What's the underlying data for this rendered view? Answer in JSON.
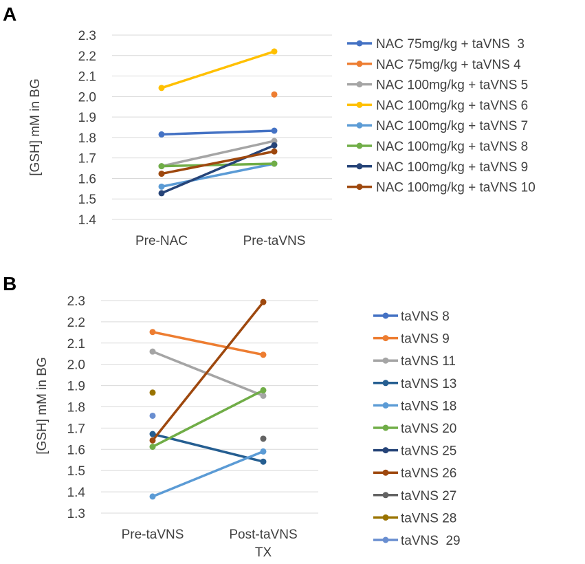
{
  "chart_data": [
    {
      "panel": "A",
      "type": "line",
      "ylabel": "[GSH] mM in BG",
      "xlabel": "",
      "categories": [
        "Pre-NAC",
        "Pre-taVNS"
      ],
      "ylim": [
        1.4,
        2.3
      ],
      "yticks": [
        "1.4",
        "1.5",
        "1.6",
        "1.7",
        "1.8",
        "1.9",
        "2.0",
        "2.1",
        "2.2",
        "2.3"
      ],
      "series": [
        {
          "name": "NAC 75mg/kg + taVNS  3",
          "color": "#4472C4",
          "values": [
            1.815,
            1.833
          ]
        },
        {
          "name": "NAC 75mg/kg + taVNS 4",
          "color": "#ED7D31",
          "values": [
            null,
            2.01
          ]
        },
        {
          "name": "NAC 100mg/kg + taVNS 5",
          "color": "#A5A5A5",
          "values": [
            1.66,
            1.783
          ]
        },
        {
          "name": "NAC 100mg/kg + taVNS 6",
          "color": "#FFC000",
          "values": [
            2.042,
            2.22
          ]
        },
        {
          "name": "NAC 100mg/kg + taVNS 7",
          "color": "#5B9BD5",
          "values": [
            1.56,
            1.672
          ]
        },
        {
          "name": "NAC 100mg/kg + taVNS 8",
          "color": "#70AD47",
          "values": [
            1.66,
            1.672
          ]
        },
        {
          "name": "NAC 100mg/kg + taVNS 9",
          "color": "#264478",
          "values": [
            1.528,
            1.762
          ]
        },
        {
          "name": "NAC 100mg/kg + taVNS 10",
          "color": "#9E480E",
          "values": [
            1.623,
            1.732
          ]
        }
      ]
    },
    {
      "panel": "B",
      "type": "line",
      "ylabel": "[GSH] mM in BG",
      "xlabel": "",
      "categories": [
        "Pre-taVNS",
        "Post-taVNS TX"
      ],
      "ylim": [
        1.3,
        2.3
      ],
      "yticks": [
        "1.3",
        "1.4",
        "1.5",
        "1.6",
        "1.7",
        "1.8",
        "1.9",
        "2.0",
        "2.1",
        "2.2",
        "2.3"
      ],
      "series": [
        {
          "name": "taVNS 8",
          "color": "#4472C4",
          "values": [
            null,
            null
          ]
        },
        {
          "name": "taVNS 9",
          "color": "#ED7D31",
          "values": [
            2.152,
            2.045
          ]
        },
        {
          "name": "taVNS 11",
          "color": "#A5A5A5",
          "values": [
            2.06,
            1.852
          ]
        },
        {
          "name": "taVNS 13",
          "color": "#255E91",
          "values": [
            1.672,
            1.542
          ]
        },
        {
          "name": "taVNS 18",
          "color": "#5B9BD5",
          "values": [
            1.378,
            1.59
          ]
        },
        {
          "name": "taVNS 20",
          "color": "#70AD47",
          "values": [
            1.612,
            1.878
          ]
        },
        {
          "name": "taVNS 25",
          "color": "#264478",
          "values": [
            null,
            null
          ]
        },
        {
          "name": "taVNS 26",
          "color": "#9E480E",
          "values": [
            1.642,
            2.293
          ]
        },
        {
          "name": "taVNS 27",
          "color": "#636363",
          "values": [
            null,
            1.65
          ]
        },
        {
          "name": "taVNS 28",
          "color": "#997300",
          "values": [
            1.867,
            null
          ]
        },
        {
          "name": "taVNS  29",
          "color": "#698ED0",
          "values": [
            1.758,
            null
          ]
        }
      ]
    }
  ]
}
